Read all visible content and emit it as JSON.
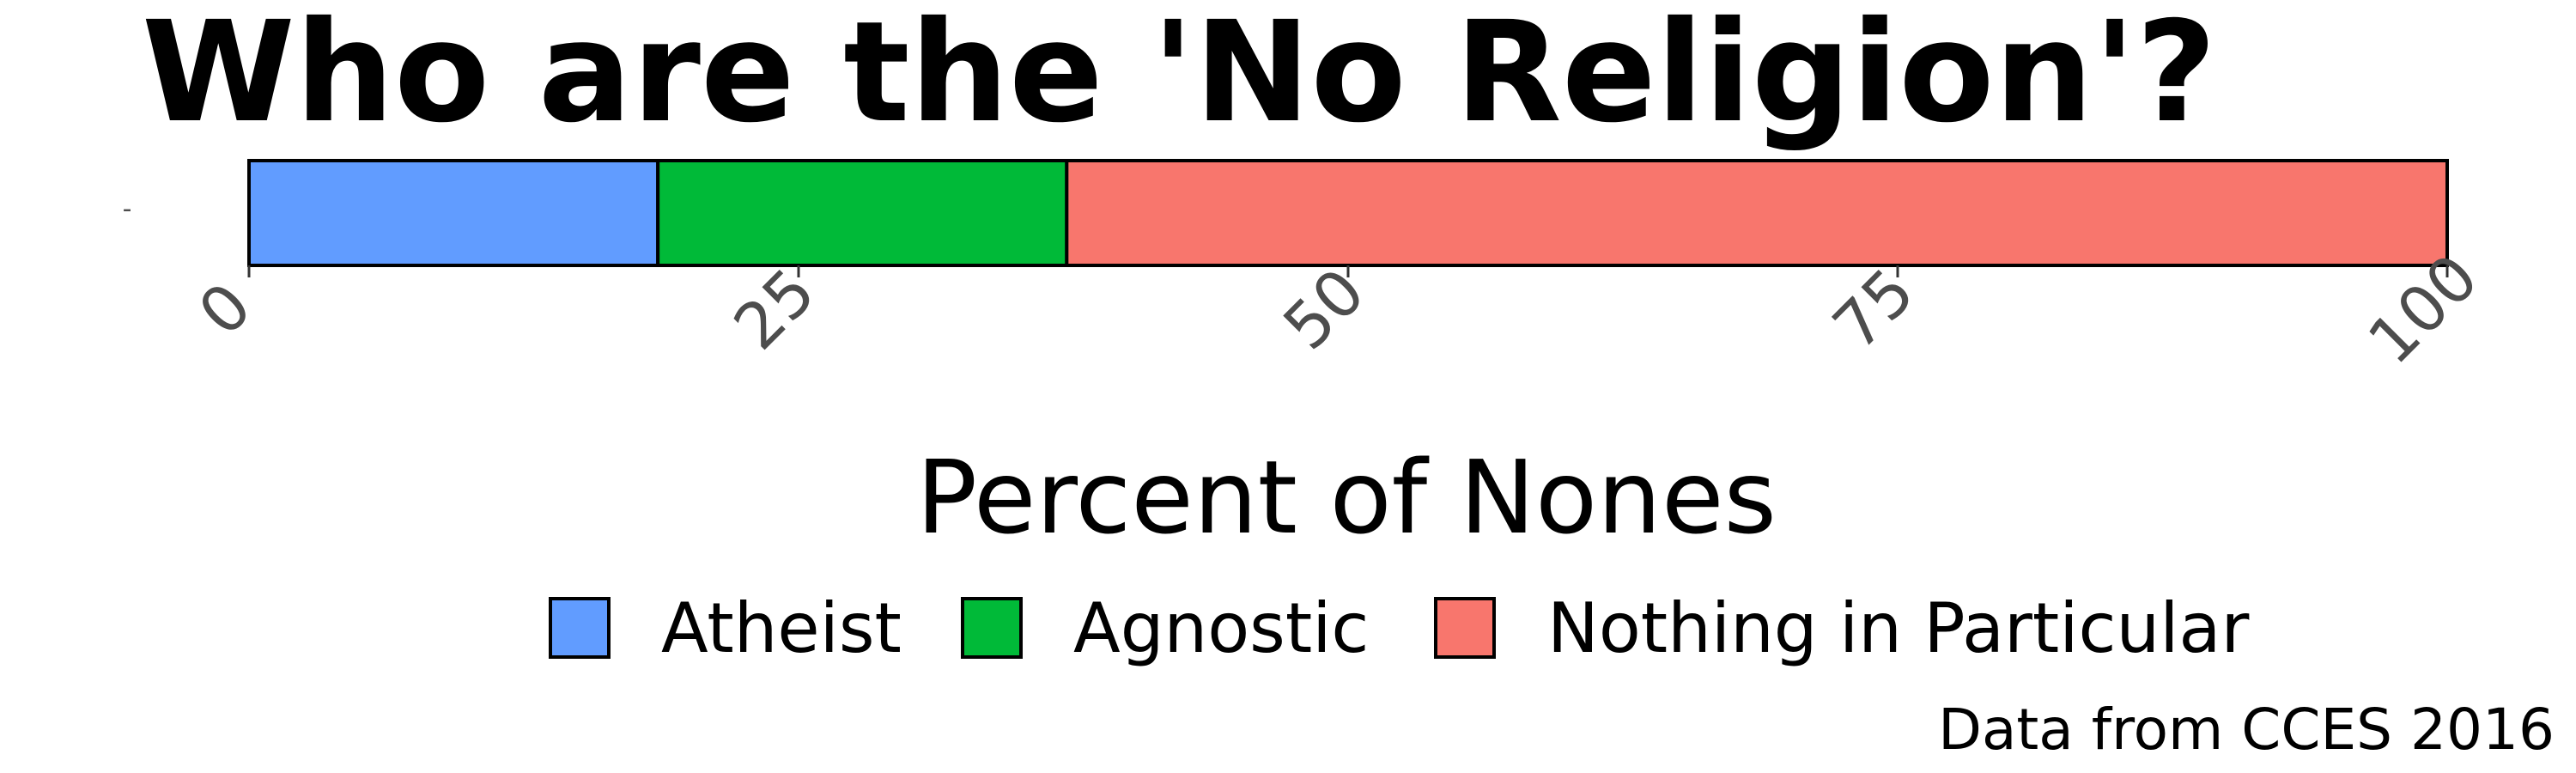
{
  "chart_data": {
    "type": "bar",
    "orientation": "horizontal",
    "stacked": true,
    "title": "Who are the 'No Religion'?",
    "xlabel": "Percent of Nones",
    "ylabel": "",
    "categories": [
      "-"
    ],
    "xlim": [
      0,
      100
    ],
    "x_ticks": [
      "0",
      "25",
      "50",
      "75",
      "100"
    ],
    "grid": false,
    "legend_position": "bottom",
    "series": [
      {
        "name": "Atheist",
        "values": [
          18.6
        ],
        "color": "#619CFF"
      },
      {
        "name": "Agnostic",
        "values": [
          18.6
        ],
        "color": "#00BA38"
      },
      {
        "name": "Nothing in Particular",
        "values": [
          62.8
        ],
        "color": "#F8766D"
      }
    ],
    "caption": "Data from CCES 2016"
  }
}
